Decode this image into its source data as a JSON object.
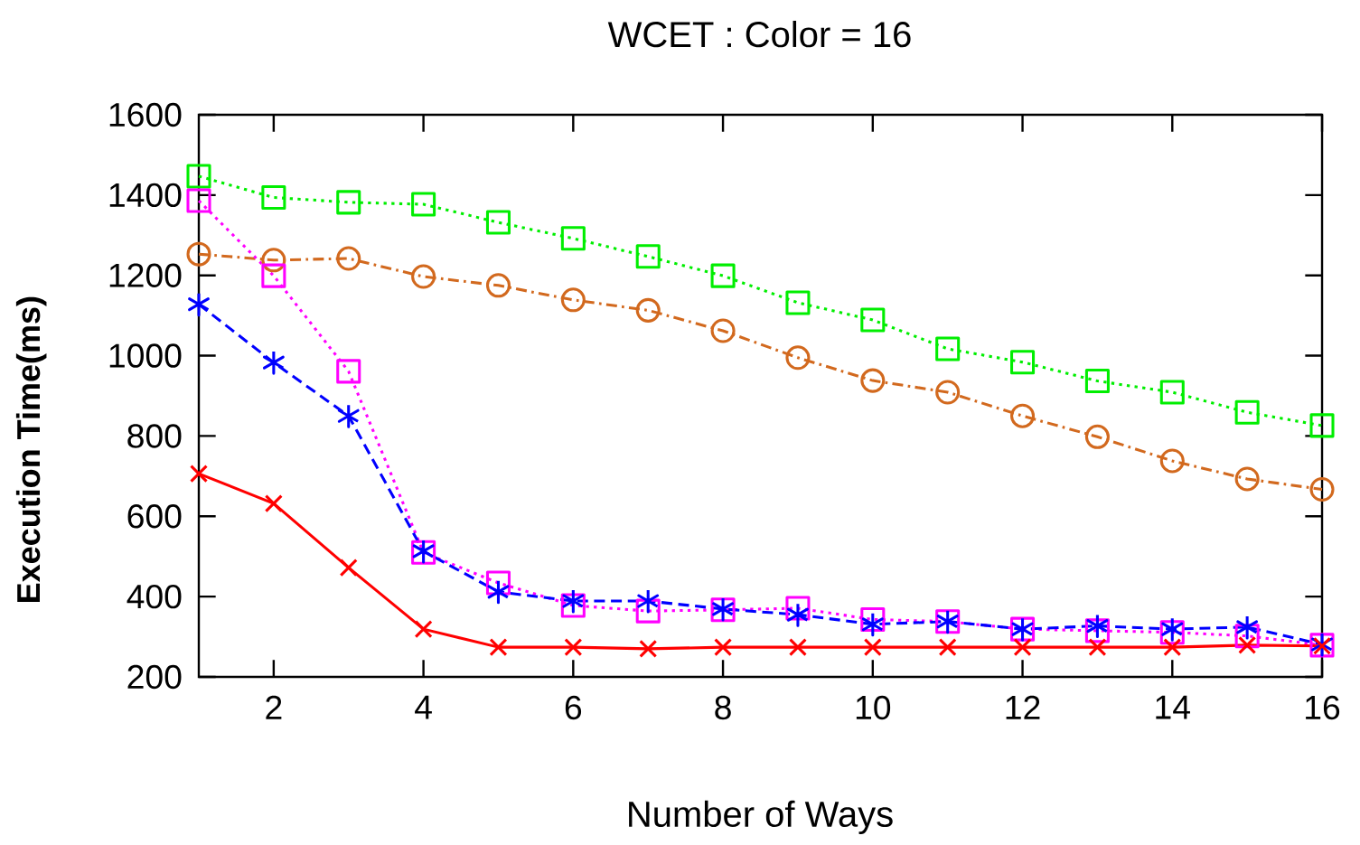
{
  "chart_data": {
    "type": "line",
    "title": "WCET : Color = 16",
    "xlabel": "Number of Ways",
    "ylabel": "Execution Time(ms)",
    "x": [
      1,
      2,
      3,
      4,
      5,
      6,
      7,
      8,
      9,
      10,
      11,
      12,
      13,
      14,
      15,
      16
    ],
    "xlim": [
      1,
      16
    ],
    "xticks": [
      2,
      4,
      6,
      8,
      10,
      12,
      14,
      16
    ],
    "ylim": [
      200,
      1600
    ],
    "yticks": [
      200,
      400,
      600,
      800,
      1000,
      1200,
      1400,
      1600
    ],
    "grid": false,
    "series": [
      {
        "color": "#00ee00",
        "marker": "square",
        "line_style": "dotted",
        "values": [
          1447,
          1394,
          1382,
          1377,
          1332,
          1292,
          1247,
          1199,
          1132,
          1089,
          1017,
          984,
          937,
          909,
          859,
          826
        ]
      },
      {
        "color": "#d2691e",
        "marker": "circle",
        "line_style": "dashdot",
        "values": [
          1253,
          1238,
          1242,
          1197,
          1175,
          1139,
          1113,
          1062,
          995,
          938,
          909,
          850,
          798,
          738,
          693,
          667
        ]
      },
      {
        "color": "#ff00ff",
        "marker": "square",
        "line_style": "dotted",
        "values": [
          1386,
          1199,
          961,
          510,
          434,
          378,
          364,
          367,
          371,
          343,
          338,
          319,
          315,
          311,
          302,
          279
        ]
      },
      {
        "color": "#0000ff",
        "marker": "cross",
        "line_style": "dashed",
        "values": [
          1128,
          983,
          850,
          513,
          412,
          389,
          389,
          369,
          355,
          331,
          338,
          319,
          327,
          319,
          324,
          281
        ]
      },
      {
        "color": "#ff0000",
        "marker": "cross",
        "line_style": "solid",
        "values": [
          706,
          632,
          472,
          319,
          274,
          274,
          270,
          274,
          274,
          274,
          274,
          274,
          274,
          274,
          279,
          277
        ]
      }
    ]
  }
}
